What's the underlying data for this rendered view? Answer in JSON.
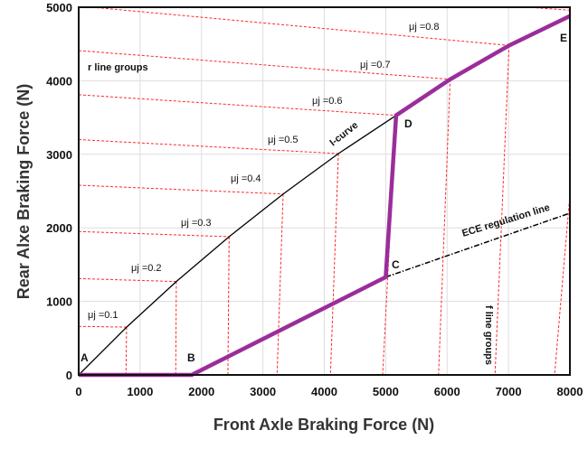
{
  "chart_data": {
    "type": "line",
    "title": "",
    "xlabel": "Front Axle Braking Force (N)",
    "ylabel": "Rear Alxe Braking Force (N)",
    "xlim": [
      0,
      8000
    ],
    "ylim": [
      0,
      5000
    ],
    "xticks": [
      "0",
      "1000",
      "2000",
      "3000",
      "4000",
      "5000",
      "6000",
      "7000",
      "8000"
    ],
    "yticks": [
      "0",
      "1000",
      "2000",
      "3000",
      "4000",
      "5000"
    ],
    "grid": true,
    "colors": {
      "actual_curve": "#9b2d9b",
      "i_curve": "#000000",
      "r_f_lines": "#ff2a2a",
      "ece_line": "#000000",
      "grid": "#dddddd"
    },
    "series": [
      {
        "name": "I-curve",
        "style": "solid-thin-black",
        "x": [
          0,
          780,
          1590,
          2450,
          3330,
          4230,
          5170
        ],
        "y": [
          0,
          650,
          1270,
          1880,
          2460,
          3010,
          3530
        ]
      },
      {
        "style": "thick-purple",
        "x": [
          0,
          1840,
          5000,
          5170,
          6050,
          7010,
          8000
        ],
        "y": [
          0,
          0,
          1330,
          3530,
          4020,
          4480,
          4880
        ]
      },
      {
        "name": "ECE regulation line",
        "style": "dash-dot-black",
        "x": [
          5000,
          8000
        ],
        "y": [
          1330,
          2200
        ]
      }
    ],
    "r_lines": [
      {
        "label": "μj =0.1",
        "x": [
          0,
          780
        ],
        "y": [
          660,
          650
        ]
      },
      {
        "label": "μj =0.2",
        "x": [
          0,
          1590
        ],
        "y": [
          1310,
          1270
        ]
      },
      {
        "label": "μj =0.3",
        "x": [
          0,
          2450
        ],
        "y": [
          1950,
          1880
        ]
      },
      {
        "label": "μj =0.4",
        "x": [
          0,
          3330
        ],
        "y": [
          2580,
          2460
        ]
      },
      {
        "label": "μj =0.5",
        "x": [
          0,
          4230
        ],
        "y": [
          3200,
          3010
        ]
      },
      {
        "label": "μj =0.6",
        "x": [
          0,
          5170
        ],
        "y": [
          3810,
          3530
        ]
      },
      {
        "label": "μj =0.7",
        "x": [
          0,
          6050
        ],
        "y": [
          4410,
          4020
        ]
      },
      {
        "label": "μj =0.8",
        "x": [
          220,
          7010
        ],
        "y": [
          5000,
          4480
        ]
      },
      {
        "label": "",
        "x": [
          7300,
          8000
        ],
        "y": [
          5000,
          4960
        ]
      }
    ],
    "f_lines": [
      {
        "x": [
          780,
          770
        ],
        "y": [
          650,
          0
        ]
      },
      {
        "x": [
          1590,
          1580
        ],
        "y": [
          1270,
          0
        ]
      },
      {
        "x": [
          2450,
          2430
        ],
        "y": [
          1880,
          0
        ]
      },
      {
        "x": [
          3330,
          3230
        ],
        "y": [
          2460,
          0
        ]
      },
      {
        "x": [
          4230,
          4100
        ],
        "y": [
          3010,
          0
        ]
      },
      {
        "x": [
          5170,
          4950
        ],
        "y": [
          3530,
          0
        ]
      },
      {
        "x": [
          6050,
          5860
        ],
        "y": [
          4020,
          0
        ]
      },
      {
        "x": [
          7010,
          6780
        ],
        "y": [
          4480,
          0
        ]
      },
      {
        "x": [
          8000,
          7750
        ],
        "y": [
          2450,
          0
        ]
      }
    ],
    "points": [
      {
        "label": "A",
        "x": 0,
        "y": 0
      },
      {
        "label": "B",
        "x": 1840,
        "y": 0
      },
      {
        "label": "C",
        "x": 5000,
        "y": 1330
      },
      {
        "label": "D",
        "x": 5170,
        "y": 3530
      },
      {
        "label": "E",
        "x": 8000,
        "y": 4880
      }
    ],
    "annotations": {
      "i_curve": "I-curve",
      "ece": "ECE regulation line",
      "r_group": "r line groups",
      "f_group": "f line groups"
    }
  }
}
